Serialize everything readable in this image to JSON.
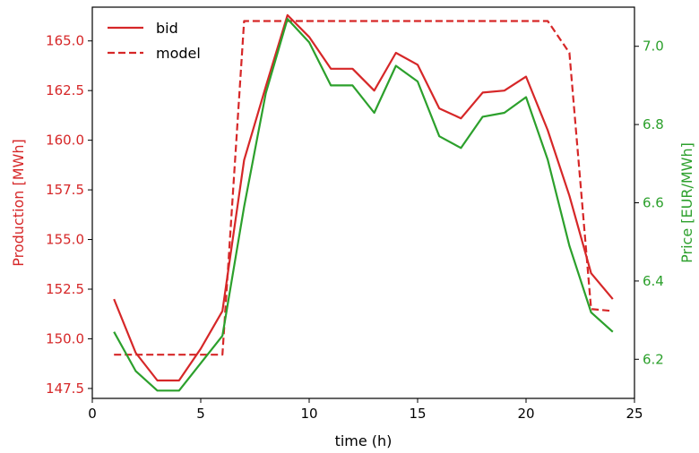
{
  "chart_data": {
    "type": "line",
    "xlabel": "time (h)",
    "ylabel_left": "Production [MWh]",
    "ylabel_right": "Price [EUR/MWh]",
    "xlim": [
      0,
      25
    ],
    "ylim_left": [
      147,
      166.7
    ],
    "ylim_right": [
      6.1,
      7.1
    ],
    "x_ticks": [
      "0",
      "5",
      "10",
      "15",
      "20",
      "25"
    ],
    "x_tick_values": [
      0,
      5,
      10,
      15,
      20,
      25
    ],
    "y_left_ticks": [
      "147.5",
      "150.0",
      "152.5",
      "155.0",
      "157.5",
      "160.0",
      "162.5",
      "165.0"
    ],
    "y_left_tick_values": [
      147.5,
      150.0,
      152.5,
      155.0,
      157.5,
      160.0,
      162.5,
      165.0
    ],
    "y_right_ticks": [
      "6.2",
      "6.4",
      "6.6",
      "6.8",
      "7.0"
    ],
    "y_right_tick_values": [
      6.2,
      6.4,
      6.6,
      6.8,
      7.0
    ],
    "legend_position": "top-left",
    "colors": {
      "production": "#d62728",
      "price": "#2ca02c",
      "axis": "#000000"
    },
    "series": [
      {
        "name": "bid",
        "axis": "left",
        "style": "solid",
        "color": "#d62728",
        "x": [
          1,
          2,
          3,
          4,
          5,
          6,
          7,
          8,
          9,
          10,
          11,
          12,
          13,
          14,
          15,
          16,
          17,
          18,
          19,
          20,
          21,
          22,
          23,
          24
        ],
        "values": [
          152.0,
          149.3,
          147.9,
          147.9,
          149.5,
          151.4,
          159.0,
          162.7,
          166.3,
          165.2,
          163.6,
          163.6,
          162.5,
          164.4,
          163.8,
          161.6,
          161.1,
          162.4,
          162.5,
          163.2,
          160.5,
          157.2,
          153.3,
          152.0
        ]
      },
      {
        "name": "model",
        "axis": "left",
        "style": "dashed",
        "color": "#d62728",
        "x": [
          1,
          2,
          3,
          4,
          5,
          6,
          7,
          8,
          9,
          10,
          11,
          12,
          13,
          14,
          15,
          16,
          17,
          18,
          19,
          20,
          21,
          22,
          23,
          24
        ],
        "values": [
          149.2,
          149.2,
          149.2,
          149.2,
          149.2,
          149.2,
          166.0,
          166.0,
          166.0,
          166.0,
          166.0,
          166.0,
          166.0,
          166.0,
          166.0,
          166.0,
          166.0,
          166.0,
          166.0,
          166.0,
          166.0,
          164.4,
          151.5,
          151.4
        ]
      },
      {
        "axis": "right",
        "style": "solid",
        "color": "#2ca02c",
        "x": [
          1,
          2,
          3,
          4,
          5,
          6,
          7,
          8,
          9,
          10,
          11,
          12,
          13,
          14,
          15,
          16,
          17,
          18,
          19,
          20,
          21,
          22,
          23,
          24
        ],
        "values": [
          6.27,
          6.17,
          6.12,
          6.12,
          6.19,
          6.26,
          6.59,
          6.88,
          7.07,
          7.01,
          6.9,
          6.9,
          6.83,
          6.95,
          6.91,
          6.77,
          6.74,
          6.82,
          6.83,
          6.87,
          6.71,
          6.49,
          6.32,
          6.27
        ]
      }
    ]
  }
}
